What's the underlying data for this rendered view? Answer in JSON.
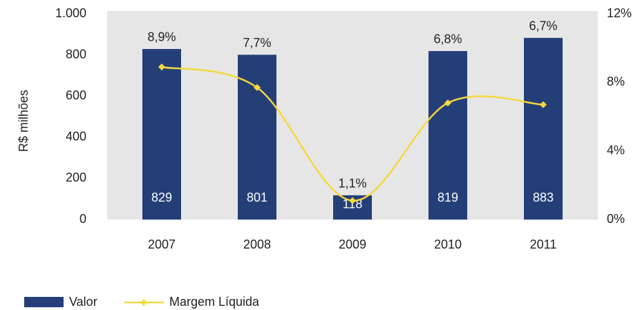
{
  "chart_data": {
    "type": "bar",
    "ylabel": "R$ milhões",
    "categories": [
      "2007",
      "2008",
      "2009",
      "2010",
      "2011"
    ],
    "series": [
      {
        "name": "Valor",
        "type": "bar",
        "color": "#243f78",
        "values": [
          829,
          801,
          118,
          819,
          883
        ]
      },
      {
        "name": "Margem Líquida",
        "type": "line",
        "axis": "y2",
        "color": "#f5d93a",
        "values": [
          8.9,
          7.7,
          1.1,
          6.8,
          6.7
        ],
        "value_labels": [
          "8,9%",
          "7,7%",
          "1,1%",
          "6,8%",
          "6,7%"
        ]
      }
    ],
    "ylim": [
      0,
      1000
    ],
    "yticks": [
      0,
      200,
      400,
      600,
      800,
      {
        "value": 1000,
        "label": "1.000"
      }
    ],
    "y2lim": [
      0,
      12
    ],
    "y2ticks": [
      {
        "value": 0,
        "label": "0%"
      },
      {
        "value": 4,
        "label": "4%"
      },
      {
        "value": 8,
        "label": "8%"
      },
      {
        "value": 12,
        "label": "12%"
      }
    ],
    "background": "#e6e6e6"
  }
}
